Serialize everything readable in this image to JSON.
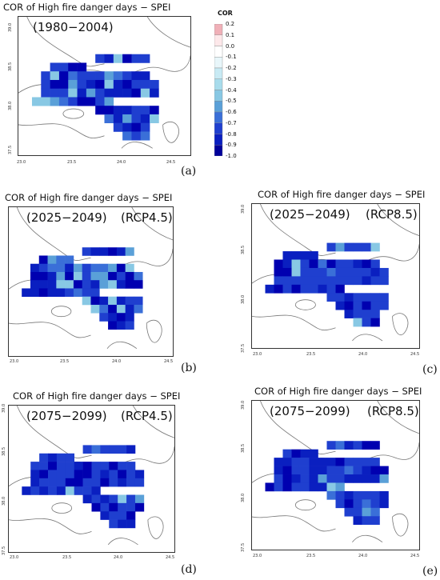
{
  "panels": [
    {
      "id": "a",
      "title": "COR of High fire danger days − SPEI",
      "period": "(1980−2004)",
      "scenario": "",
      "caption": "(a)",
      "ticks_x": [
        "23.0",
        "23.5",
        "24.0",
        "24.5"
      ],
      "ticks_y": [
        "39.0",
        "38.5",
        "38.0",
        "37.5"
      ]
    },
    {
      "id": "b",
      "title": "COR of High fire danger days − SPEI",
      "period": "(2025−2049)",
      "scenario": "(RCP4.5)",
      "caption": "(b)",
      "ticks_x": [
        "23.0",
        "23.5",
        "24.0",
        "24.5"
      ],
      "ticks_y": [
        "39.0",
        "38.5",
        "38.0",
        "37.5"
      ]
    },
    {
      "id": "c",
      "title": "COR of High fire danger days − SPEI",
      "period": "(2025−2049)",
      "scenario": "(RCP8.5)",
      "caption": "(c)",
      "ticks_x": [
        "23.0",
        "23.5",
        "24.0",
        "24.5"
      ],
      "ticks_y": [
        "39.0",
        "38.5",
        "38.0",
        "37.5"
      ]
    },
    {
      "id": "d",
      "title": "COR of High fire danger days − SPEI",
      "period": "(2075−2099)",
      "scenario": "(RCP4.5)",
      "caption": "(d)",
      "ticks_x": [
        "23.0",
        "23.5",
        "24.0",
        "24.5"
      ],
      "ticks_y": [
        "39.0",
        "38.5",
        "38.0",
        "37.5"
      ]
    },
    {
      "id": "e",
      "title": "COR of High fire danger days − SPEI",
      "period": "(2075−2099)",
      "scenario": "(RCP8.5)",
      "caption": "(e)",
      "ticks_x": [
        "23.0",
        "23.5",
        "24.0",
        "24.5"
      ],
      "ticks_y": [
        "39.0",
        "38.5",
        "38.0",
        "37.5"
      ]
    }
  ],
  "colorbar": {
    "title": "COR",
    "labels": [
      "0.2",
      "0.1",
      "0.0",
      "-0.1",
      "-0.2",
      "-0.3",
      "-0.4",
      "-0.5",
      "-0.6",
      "-0.7",
      "-0.8",
      "-0.9",
      "-1.0"
    ],
    "colors": [
      "#f0b0b8",
      "#fde8ea",
      "#ffffff",
      "#e8f6fa",
      "#c8eaf4",
      "#a8dcec",
      "#88c8e4",
      "#5aa0d8",
      "#3a6fd8",
      "#1f3fcf",
      "#0a1fc0",
      "#00009a"
    ]
  }
}
